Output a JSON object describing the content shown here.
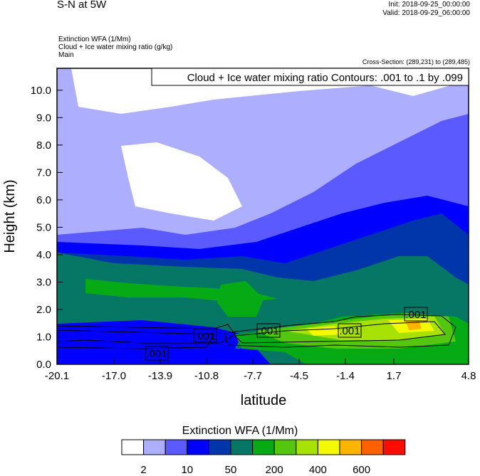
{
  "header": {
    "title": "S-N at 5W",
    "init": "Init: 2018-09-25_00:00:00",
    "valid": "Valid: 2018-09-29_06:00:00",
    "fields": [
      "Extinction WFA   (1/Mm)",
      "Cloud + Ice water mixing ratio   (g/kg)",
      "Main"
    ],
    "cross_section": "Cross-Section: (289,231) to (289,485)"
  },
  "chart_data": {
    "type": "heatmap",
    "title": "S-N at 5W",
    "contour_title": "Cloud + Ice water mixing ratio Contours: .001 to .1 by .099",
    "xlabel": "latitude",
    "ylabel": "Height (km)",
    "xlim": [
      -20.1,
      4.8
    ],
    "ylim": [
      0.0,
      10.8
    ],
    "x_ticks": [
      "-20.1",
      "-17.0",
      "-13.9",
      "-10.8",
      "-7.7",
      "-4.5",
      "-1.4",
      "1.7",
      "4.8"
    ],
    "y_ticks": [
      "0.0",
      "1.0",
      "2.0",
      "3.0",
      "4.0",
      "5.0",
      "6.0",
      "7.0",
      "8.0",
      "9.0",
      "10.0"
    ],
    "contour_labels": [
      ".001",
      ".001",
      ".001",
      ".001",
      ".001",
      ".001"
    ],
    "colorbar": {
      "title": "Extinction WFA  (1/Mm)",
      "labels": [
        "2",
        "10",
        "50",
        "200",
        "400",
        "600"
      ],
      "colors": [
        "#ffffff",
        "#aeaefe",
        "#5a5aff",
        "#0000ff",
        "#0036aa",
        "#067764",
        "#06aa14",
        "#55c60e",
        "#a8e205",
        "#f2f900",
        "#ffb400",
        "#ff6000",
        "#ff0c00"
      ]
    }
  }
}
